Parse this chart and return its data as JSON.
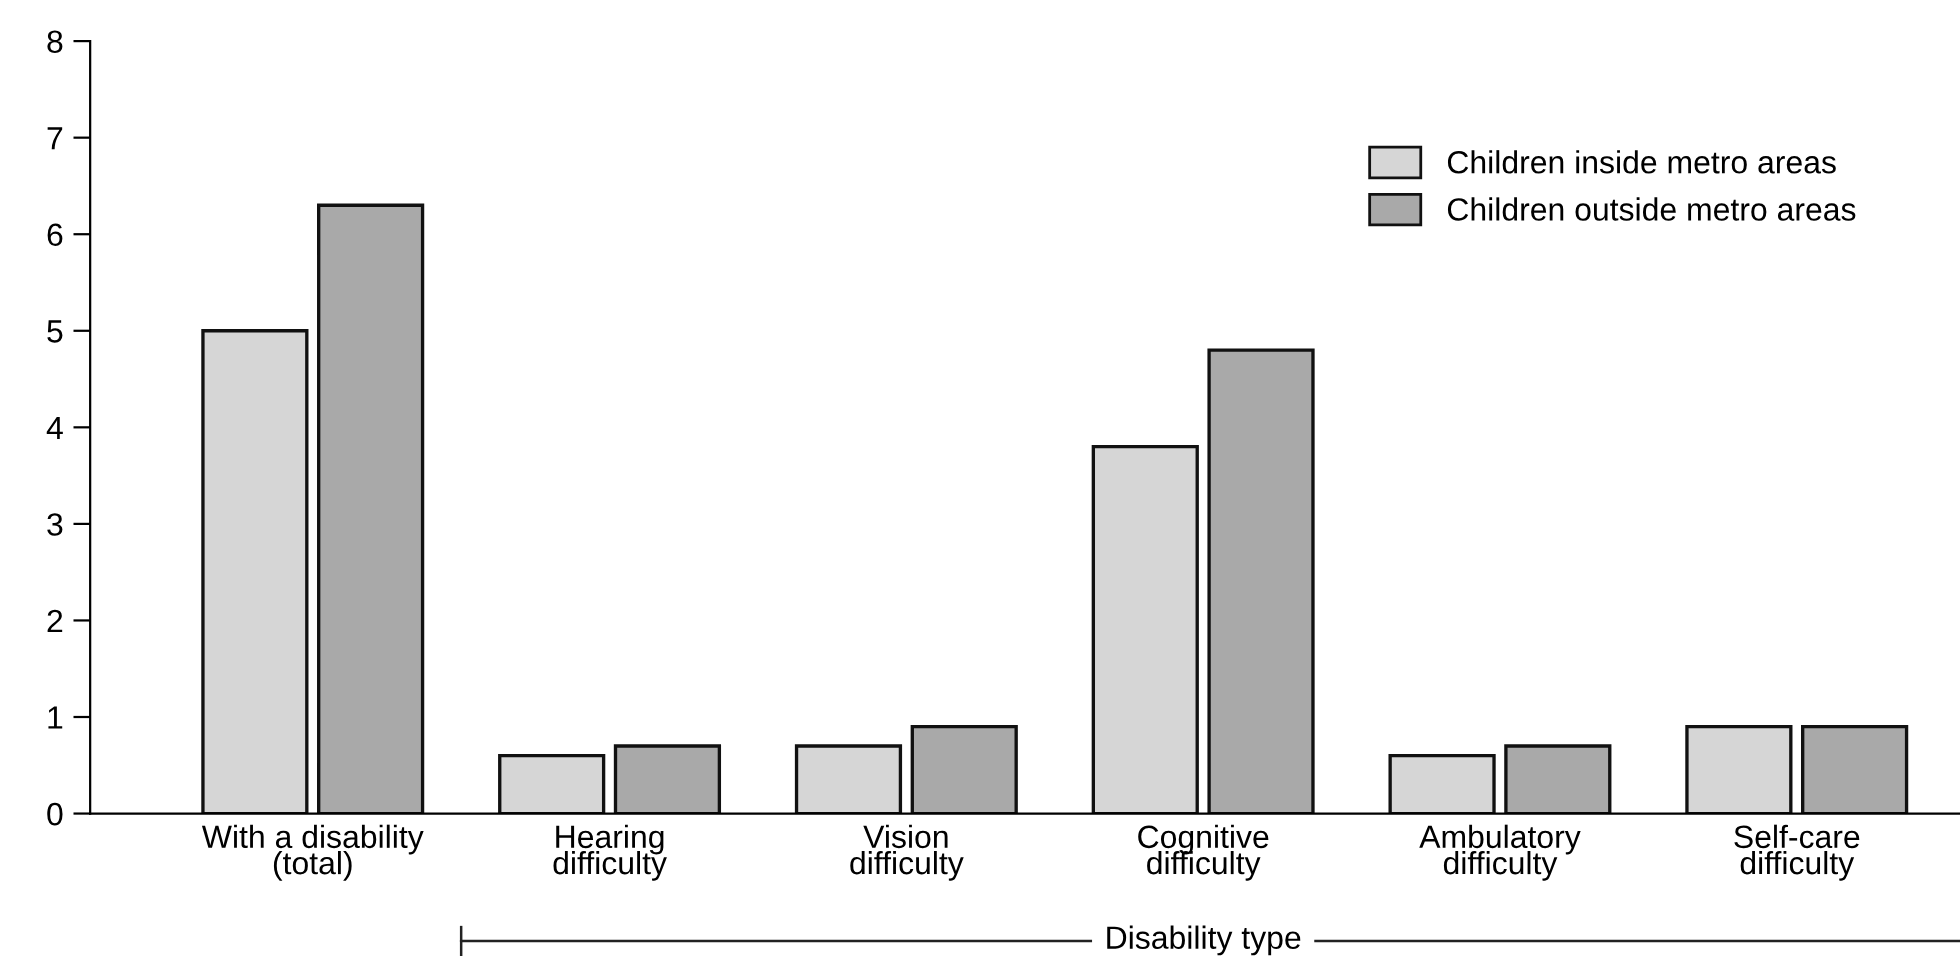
{
  "chart_data": {
    "type": "bar",
    "xlabel": "Disability type",
    "categories": [
      "With a disability\n(total)",
      "Hearing\ndifficulty",
      "Vision\ndifficulty",
      "Cognitive\ndifficulty",
      "Ambulatory\ndifficulty",
      "Self-care\ndifficulty"
    ],
    "series": [
      {
        "name": "Children inside metro areas",
        "color": "#d6d6d6",
        "values": [
          5.0,
          0.6,
          0.7,
          3.8,
          0.6,
          0.9
        ]
      },
      {
        "name": "Children outside metro areas",
        "color": "#a9a9a9",
        "values": [
          6.3,
          0.7,
          0.9,
          4.8,
          0.7,
          0.9
        ]
      }
    ],
    "ylim": [
      0,
      8
    ],
    "yticks": [
      0,
      1,
      2,
      3,
      4,
      5,
      6,
      7,
      8
    ],
    "grid": false,
    "legend": "top right"
  }
}
